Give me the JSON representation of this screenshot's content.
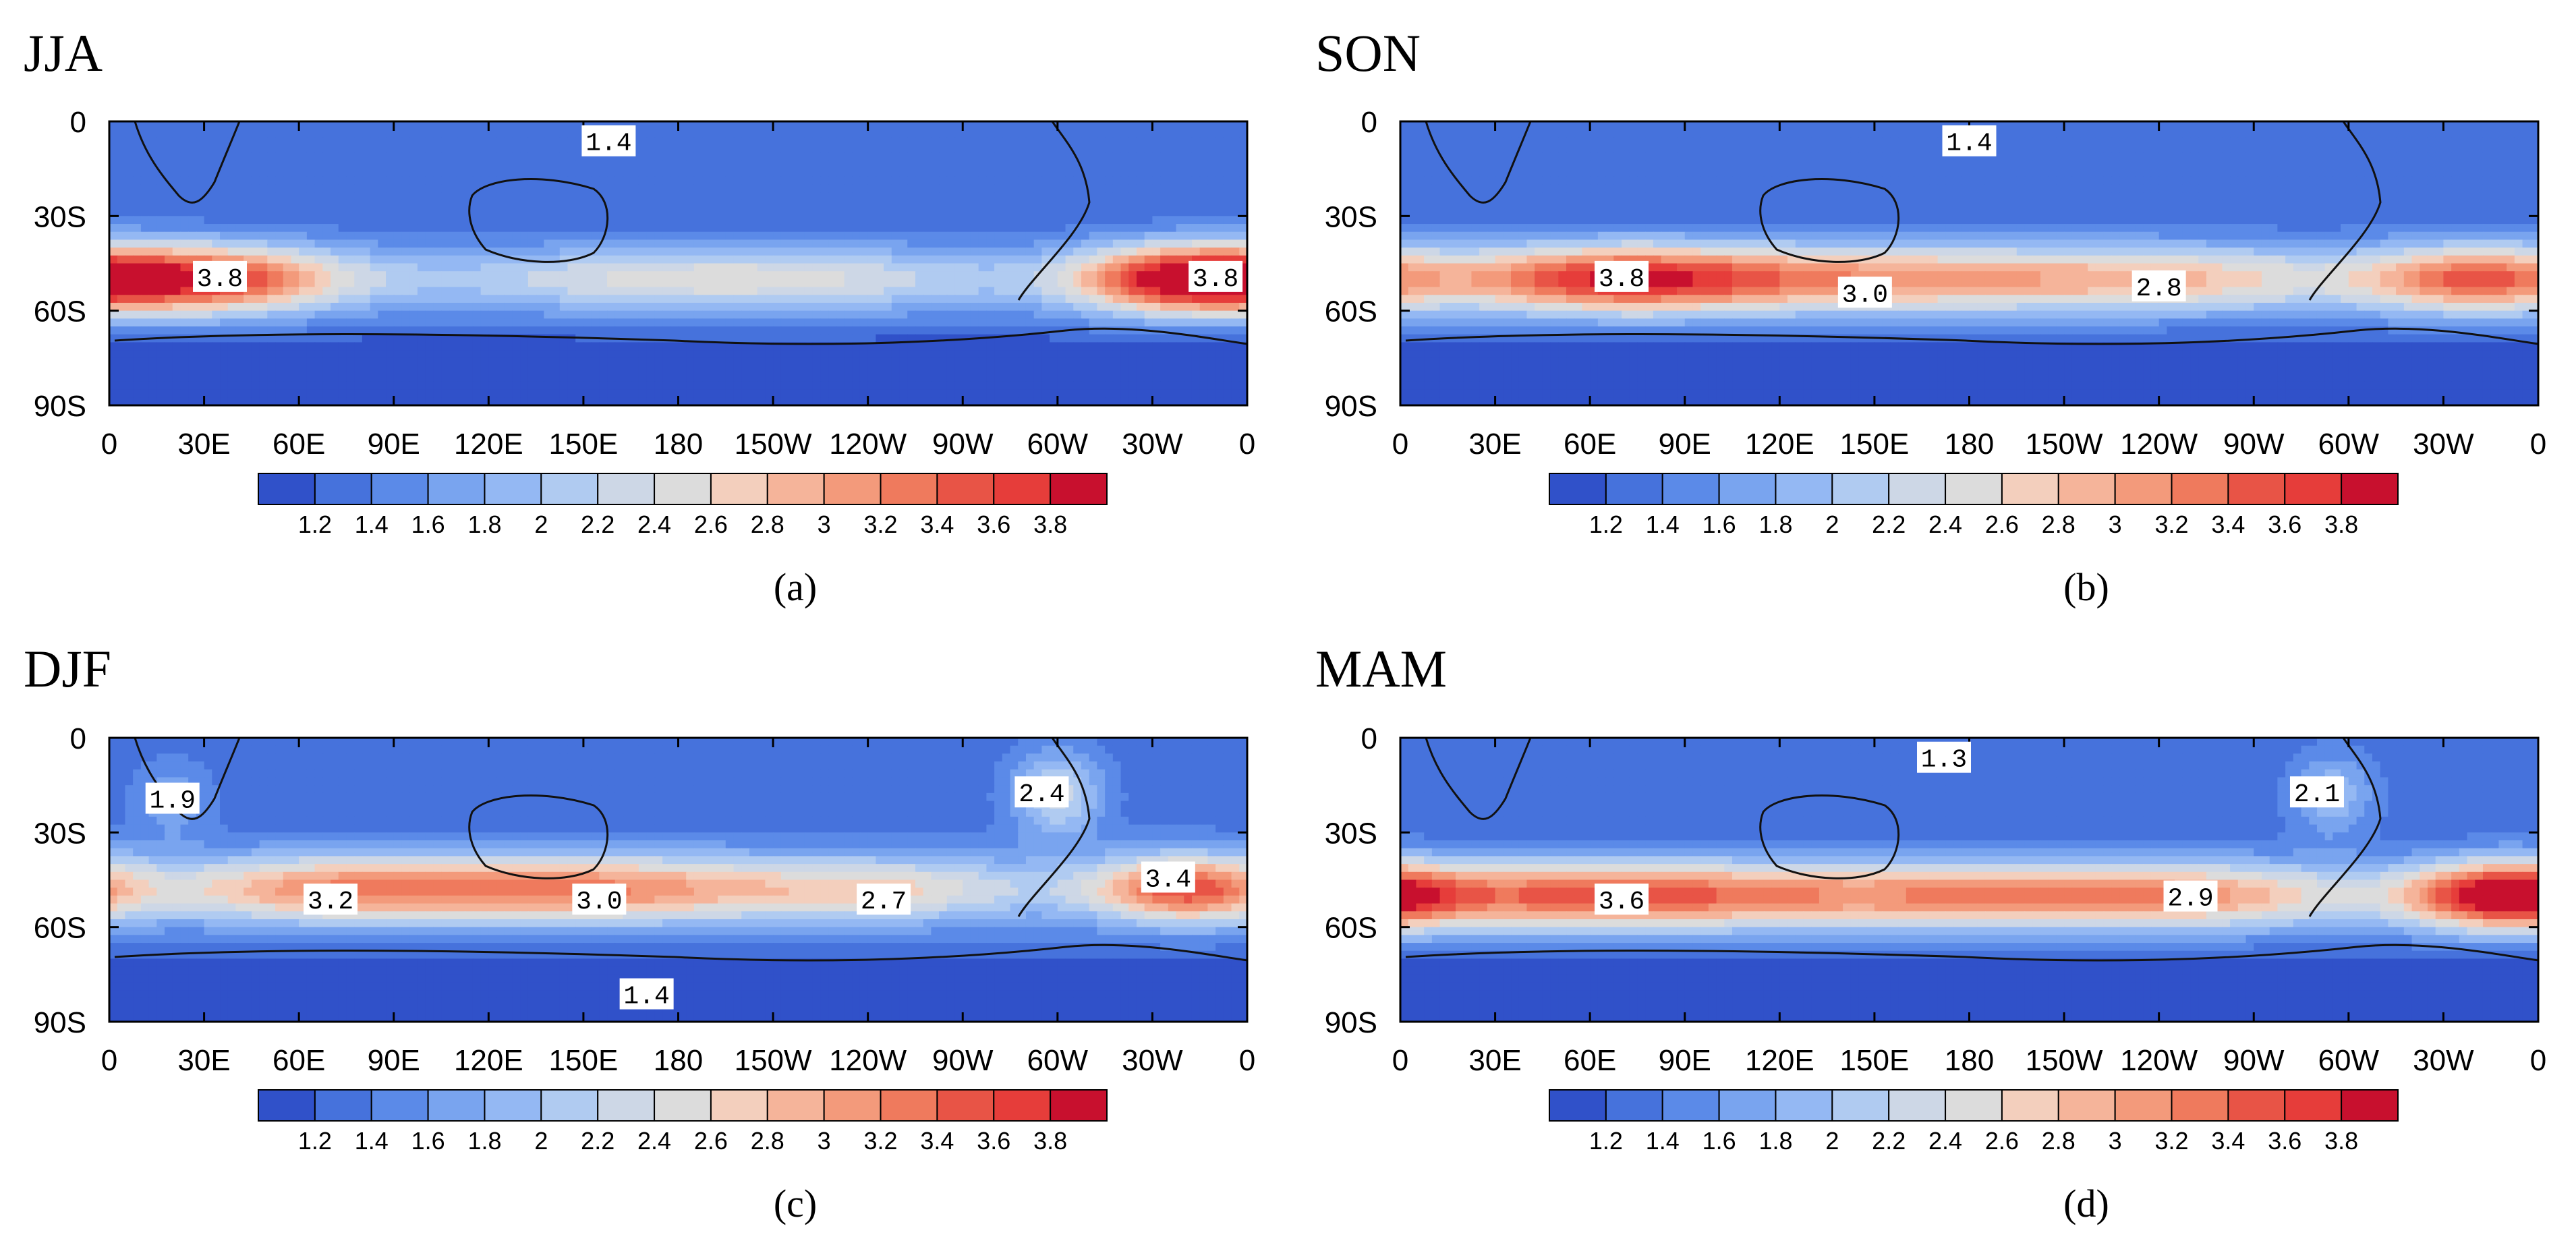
{
  "figure": {
    "colorbar": {
      "labels": [
        "1.2",
        "1.4",
        "1.6",
        "1.8",
        "2",
        "2.2",
        "2.4",
        "2.6",
        "2.8",
        "3",
        "3.2",
        "3.4",
        "3.6",
        "3.8"
      ],
      "colors": [
        "#3051c9",
        "#4672dc",
        "#5b8ae8",
        "#79a4ef",
        "#94b8f3",
        "#b0cbf1",
        "#cdd7e6",
        "#dcdcdc",
        "#f3cfbd",
        "#f5b49a",
        "#f39a7b",
        "#ef7a5d",
        "#e85446",
        "#e63d3a",
        "#c8102e"
      ]
    },
    "xticks": [
      "0",
      "30E",
      "60E",
      "90E",
      "120E",
      "150E",
      "180",
      "150W",
      "120W",
      "90W",
      "60W",
      "30W",
      "0"
    ],
    "yticks": [
      "0",
      "30S",
      "60S",
      "90S"
    ]
  },
  "chart_data": [
    {
      "type": "heatmap",
      "title": "JJA",
      "caption": "(a)",
      "variable_range": [
        1.2,
        3.8
      ],
      "x_range": [
        0,
        360
      ],
      "y_range": [
        0,
        -90
      ],
      "contour_labels": [
        {
          "text": "1.4",
          "lon": 158,
          "lat": -7
        },
        {
          "text": "3.8",
          "lon": 35,
          "lat": -50
        },
        {
          "text": "3.8",
          "lon": 350,
          "lat": -50
        }
      ],
      "field": {
        "base": 1.35,
        "peak_lat": -50,
        "peak_width": 11,
        "peaks": [
          {
            "lon": 30,
            "amp": 2.3,
            "w": 45
          },
          {
            "lon": 340,
            "amp": 2.3,
            "w": 35
          },
          {
            "lon": 195,
            "amp": 1.3,
            "w": 110
          }
        ]
      }
    },
    {
      "type": "heatmap",
      "title": "SON",
      "caption": "(b)",
      "variable_range": [
        1.2,
        3.8
      ],
      "x_range": [
        0,
        360
      ],
      "y_range": [
        0,
        -90
      ],
      "contour_labels": [
        {
          "text": "1.4",
          "lon": 180,
          "lat": -7
        },
        {
          "text": "3.8",
          "lon": 70,
          "lat": -50
        },
        {
          "text": "3.0",
          "lon": 147,
          "lat": -55
        },
        {
          "text": "2.8",
          "lon": 240,
          "lat": -53
        }
      ],
      "field": {
        "base": 1.35,
        "peak_lat": -50,
        "peak_width": 11,
        "peaks": [
          {
            "lon": 65,
            "amp": 2.3,
            "w": 55
          },
          {
            "lon": 150,
            "amp": 1.55,
            "w": 70
          },
          {
            "lon": 250,
            "amp": 1.4,
            "w": 70
          },
          {
            "lon": 340,
            "amp": 1.8,
            "w": 35
          }
        ]
      }
    },
    {
      "type": "heatmap",
      "title": "DJF",
      "caption": "(c)",
      "variable_range": [
        1.2,
        3.8
      ],
      "x_range": [
        0,
        360
      ],
      "y_range": [
        0,
        -90
      ],
      "contour_labels": [
        {
          "text": "1.9",
          "lon": 20,
          "lat": -20
        },
        {
          "text": "2.4",
          "lon": 295,
          "lat": -18
        },
        {
          "text": "3.2",
          "lon": 70,
          "lat": -52
        },
        {
          "text": "3.0",
          "lon": 155,
          "lat": -52
        },
        {
          "text": "2.7",
          "lon": 245,
          "lat": -52
        },
        {
          "text": "3.4",
          "lon": 335,
          "lat": -45
        },
        {
          "text": "1.4",
          "lon": 170,
          "lat": -82
        }
      ],
      "field": {
        "base": 1.4,
        "peak_lat": -48,
        "peak_width": 11,
        "peaks": [
          {
            "lon": 70,
            "amp": 1.8,
            "w": 60
          },
          {
            "lon": 155,
            "amp": 1.6,
            "w": 55
          },
          {
            "lon": 245,
            "amp": 1.3,
            "w": 60
          },
          {
            "lon": 340,
            "amp": 2.0,
            "w": 30
          }
        ],
        "bumps": [
          {
            "lon": 20,
            "lat": -20,
            "amp": 0.45,
            "w": 12
          },
          {
            "lon": 300,
            "lat": -18,
            "amp": 1.0,
            "w": 14
          }
        ]
      }
    },
    {
      "type": "heatmap",
      "title": "MAM",
      "caption": "(d)",
      "variable_range": [
        1.2,
        3.8
      ],
      "x_range": [
        0,
        360
      ],
      "y_range": [
        0,
        -90
      ],
      "contour_labels": [
        {
          "text": "1.3",
          "lon": 172,
          "lat": -7
        },
        {
          "text": "2.1",
          "lon": 290,
          "lat": -18
        },
        {
          "text": "3.6",
          "lon": 70,
          "lat": -52
        },
        {
          "text": "2.9",
          "lon": 250,
          "lat": -51
        }
      ],
      "field": {
        "base": 1.35,
        "peak_lat": -50,
        "peak_width": 11,
        "peaks": [
          {
            "lon": 60,
            "amp": 2.2,
            "w": 70
          },
          {
            "lon": 170,
            "amp": 1.6,
            "w": 70
          },
          {
            "lon": 255,
            "amp": 1.5,
            "w": 60
          },
          {
            "lon": 348,
            "amp": 2.2,
            "w": 30
          }
        ],
        "bumps": [
          {
            "lon": 295,
            "lat": -18,
            "amp": 0.7,
            "w": 14
          }
        ]
      }
    }
  ]
}
